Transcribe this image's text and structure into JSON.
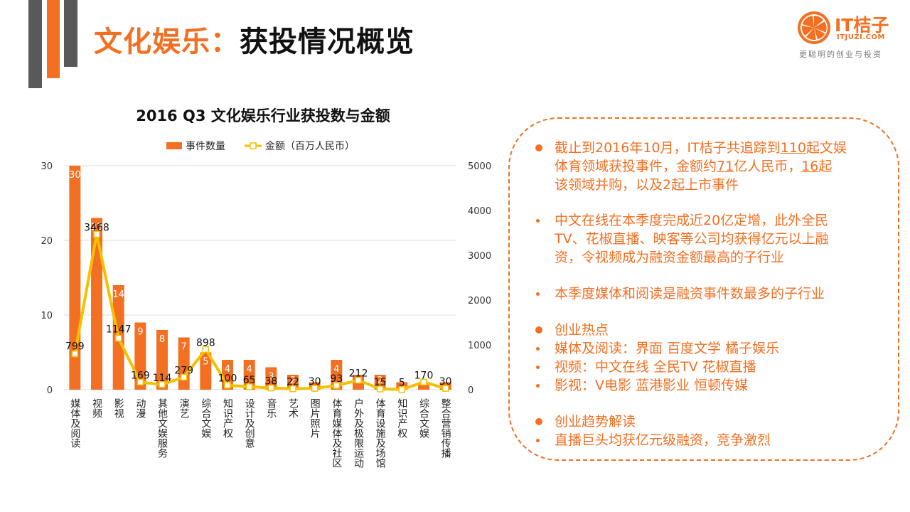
{
  "title": {
    "part1": "文化娱乐",
    "sep": "：",
    "part2": "获投情况概览"
  },
  "logo": {
    "brand": "IT桔子",
    "url": "ITJUZI.COM",
    "slogan": "更聪明的创业与投资"
  },
  "colors": {
    "accent": "#f36f21",
    "line": "#f5c000",
    "dark": "#595959"
  },
  "chart_data": {
    "type": "bar",
    "title": "2016 Q3 文化娱乐行业获投数与金额",
    "categories": [
      "媒体及阅读",
      "视频",
      "影视",
      "动漫",
      "其他文娱服务",
      "演艺",
      "综合文娱",
      "知识产权",
      "设计及创意",
      "音乐",
      "艺术",
      "图片照片",
      "体育媒体及社区",
      "户外及极限运动",
      "体育设施及场馆",
      "知识产权",
      "综合文娱",
      "整合营销传播"
    ],
    "series": [
      {
        "name": "事件数量",
        "type": "bar",
        "axis": "left",
        "color": "#f36f21",
        "values": [
          30,
          23,
          14,
          9,
          8,
          7,
          5,
          4,
          4,
          3,
          2,
          1,
          4,
          2,
          2,
          1,
          1,
          1
        ],
        "labels": [
          "30",
          "23",
          "14",
          "9",
          "8",
          "7",
          "5",
          "4",
          "4",
          "3",
          "2",
          "",
          "4",
          "",
          "2",
          "",
          "",
          ""
        ]
      },
      {
        "name": "金额（百万人民币）",
        "type": "line",
        "axis": "right",
        "color": "#f5c000",
        "values": [
          799,
          3468,
          1147,
          169,
          114,
          279,
          898,
          100,
          65,
          38,
          22,
          30,
          93,
          212,
          15,
          5,
          170,
          30
        ],
        "labels": [
          "799",
          "3468",
          "1147",
          "169",
          "114",
          "279",
          "898",
          "100",
          "65",
          "38",
          "22",
          "30",
          "93",
          "212",
          "15",
          "5",
          "170",
          "30"
        ]
      }
    ],
    "y_left": {
      "min": 0,
      "max": 30,
      "ticks": [
        "0",
        "10",
        "20",
        "30"
      ]
    },
    "y_right": {
      "min": 0,
      "max": 5000,
      "ticks": [
        "0",
        "1000",
        "2000",
        "3000",
        "4000",
        "5000"
      ]
    },
    "grid": true,
    "legend_position": "top"
  },
  "panel": {
    "l1a": "截止到2016年10月，IT桔子共追踪到",
    "l1b": "110",
    "l1c": "起文娱",
    "l2a": "体育领域获投事件，金额约",
    "l2b": "71",
    "l2c": "亿人民币，",
    "l2d": "16",
    "l2e": "起",
    "l3": "该领域并购，以及2起上市事件",
    "l4": "中文在线在本季度完成近20亿定增，此外全民",
    "l5": "TV、花椒直播、映客等公司均获得亿元以上融",
    "l6": "资，令视频成为融资金额最高的子行业",
    "l7": "本季度媒体和阅读是融资事件数最多的子行业",
    "l8": "创业热点",
    "l9": "媒体及阅读：界面  百度文学  橘子娱乐",
    "l10": "视频：中文在线  全民TV  花椒直播",
    "l11": "影视：V电影  蓝港影业  恒顿传媒",
    "l12": "创业趋势解读",
    "l13": "直播巨头均获亿元级融资，竞争激烈"
  }
}
